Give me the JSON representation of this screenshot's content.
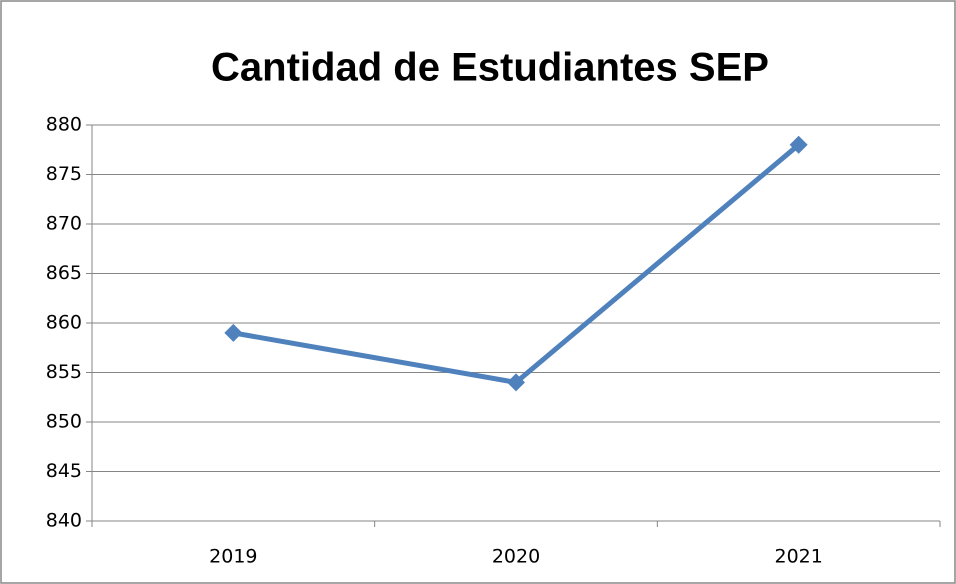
{
  "chart_data": {
    "type": "line",
    "title": "Cantidad de Estudiantes SEP",
    "categories": [
      "2019",
      "2020",
      "2021"
    ],
    "series": [
      {
        "name": "Cantidad de Estudiantes SEP",
        "color": "#4f81bd",
        "values": [
          859,
          854,
          878
        ]
      }
    ],
    "ylim": [
      840,
      880
    ],
    "yticks": [
      840,
      845,
      850,
      855,
      860,
      865,
      870,
      875,
      880
    ],
    "grid": true
  }
}
